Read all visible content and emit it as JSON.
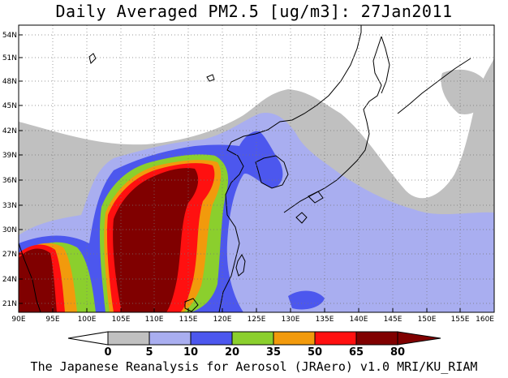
{
  "title": "Daily Averaged PM2.5 [ug/m3]: 27Jan2011",
  "credit": "The Japanese Reanalysis for Aerosol (JRAero) v1.0 MRI/KU_RIAM",
  "lon_labels": [
    "90E",
    "95E",
    "100E",
    "105E",
    "110E",
    "115E",
    "120E",
    "125E",
    "130E",
    "135E",
    "140E",
    "145E",
    "150E",
    "155E",
    "160E"
  ],
  "lat_labels": [
    "54N",
    "51N",
    "48N",
    "45N",
    "42N",
    "39N",
    "36N",
    "33N",
    "30N",
    "27N",
    "24N",
    "21N"
  ],
  "colorbar": {
    "labels": [
      "0",
      "5",
      "10",
      "20",
      "35",
      "50",
      "65",
      "80"
    ],
    "colors": [
      "#ffffff",
      "#c0c0c0",
      "#a9aef0",
      "#4c57ee",
      "#8bcf2d",
      "#f29a0c",
      "#ff1010",
      "#800000"
    ]
  },
  "map": {
    "lon_range": [
      90,
      160
    ],
    "lat_range": [
      20,
      55
    ],
    "grid": "dotted",
    "legend_position": "bottom"
  }
}
